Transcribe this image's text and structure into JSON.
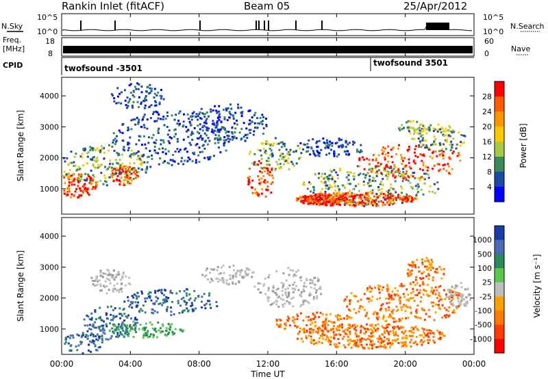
{
  "header": {
    "station": "Rankin Inlet (fitACF)",
    "beam": "Beam 05",
    "date": "25/Apr/2012"
  },
  "side_labels": {
    "nsky": "N.Sky",
    "nsearch": "N.Search",
    "freq_line1": "Freq.",
    "freq_line2": "[MHz]",
    "nave": "Nave",
    "cpid": "CPID"
  },
  "chart_data": [
    {
      "type": "line",
      "name": "noise-panel",
      "left_label": "N.Sky",
      "right_label": "N.Search",
      "left_ticks": [
        "10^5",
        "10^0"
      ],
      "right_ticks": [
        "10^5",
        "10^0"
      ]
    },
    {
      "type": "area",
      "name": "frequency-panel",
      "left_label": "Freq. [MHz]",
      "right_label": "Nave",
      "left_ticks": [
        "18",
        "8"
      ],
      "right_ticks": [
        "60",
        "0"
      ]
    },
    {
      "type": "table",
      "name": "cpid-panel",
      "label": "CPID",
      "entries": [
        {
          "start": "00:00",
          "name": "twofsound -3501"
        },
        {
          "start": "18:00",
          "name": "twofsound 3501"
        }
      ]
    },
    {
      "type": "heatmap",
      "name": "power-panel",
      "ylabel": "Slant Range [km]",
      "yticks": [
        1000,
        2000,
        3000,
        4000
      ],
      "ylim": [
        180,
        4600
      ],
      "colorbar_label": "Power [dB]",
      "colorbar_ticks": [
        "28",
        "24",
        "20",
        "16",
        "12",
        "8",
        "4"
      ],
      "colorbar_colors": [
        "#ff0000",
        "#ff5a00",
        "#ff9600",
        "#ffc800",
        "#a8c84a",
        "#3a8a5a",
        "#1a4aa8",
        "#0000ff"
      ]
    },
    {
      "type": "heatmap",
      "name": "velocity-panel",
      "ylabel": "Slant Range [km]",
      "yticks": [
        1000,
        2000,
        3000,
        4000
      ],
      "ylim": [
        180,
        4600
      ],
      "xlabel": "Time UT",
      "xticks": [
        "00:00",
        "04:00",
        "08:00",
        "12:00",
        "16:00",
        "20:00",
        "00:00"
      ],
      "colorbar_label": "Velocity [m s⁻¹]",
      "colorbar_ticks": [
        "1000",
        "500",
        "100",
        "25",
        "-25",
        "-100",
        "-500",
        "-1000"
      ],
      "colorbar_colors": [
        "#1a3ca8",
        "#4a6ab8",
        "#2a8a5a",
        "#5ac84a",
        "#bebebe",
        "#ffa000",
        "#ff7800",
        "#ff3c00",
        "#ff0000"
      ]
    }
  ]
}
